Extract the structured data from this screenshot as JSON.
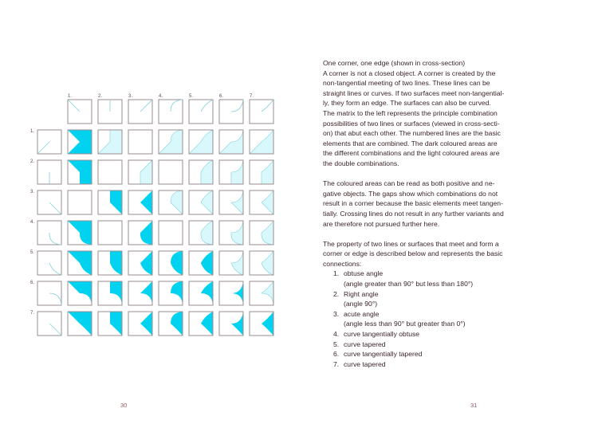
{
  "matrix": {
    "column_labels": [
      "1.",
      "2.",
      "3.",
      "4.",
      "5.",
      "6.",
      "7."
    ],
    "row_labels": [
      "1.",
      "2.",
      "3.",
      "4.",
      "5.",
      "6.",
      "7."
    ],
    "cells": [
      [
        "dark",
        "light",
        "empty",
        "light",
        "light",
        "light",
        "light"
      ],
      [
        "dark",
        "empty",
        "light",
        "empty",
        "light",
        "light",
        "light"
      ],
      [
        "empty",
        "dark",
        "dark",
        "light",
        "light",
        "light",
        "light"
      ],
      [
        "dark",
        "empty",
        "dark",
        "empty",
        "light",
        "light",
        "light"
      ],
      [
        "dark",
        "dark",
        "dark",
        "dark",
        "dark",
        "light",
        "light"
      ],
      [
        "dark",
        "dark",
        "dark",
        "dark",
        "dark",
        "dark",
        "light"
      ],
      [
        "dark",
        "dark",
        "dark",
        "dark",
        "dark",
        "dark",
        "dark"
      ]
    ],
    "colors": {
      "dark": "#00d2ef",
      "light": "#d9f8fc",
      "line": "#7fd0d8",
      "border": "#9a8c92"
    }
  },
  "text": {
    "heading": "One corner, one edge (shown in cross-section)",
    "para1": [
      "A corner is not a closed object. A corner is created by the",
      "non-tangential meeting of two lines. These lines can be",
      "straight lines or curves. If two surfaces meet non-tangential-",
      "ly, they form an edge. The surfaces can also be curved.",
      "The matrix to the left represents the principle combination",
      "possibilities of two lines or surfaces (viewed in cross-secti-",
      "on) that abut each other. The numbered lines are the basic",
      "elements that are combined. The dark coloured areas are",
      "the different combinations and the light coloured areas are",
      "the double combinations."
    ],
    "para2": [
      "The coloured areas can be read as both positive and ne-",
      "gative objects. The gaps show which combinations do not",
      "result in a corner because the basic elements meet tangen-",
      "tially. Crossing lines do not result in any further variants and",
      "are therefore not pursued further here."
    ],
    "para3": [
      "The property of two lines or surfaces that meet and form a",
      "corner or edge is described below and represents the basic",
      "connections:"
    ],
    "list": [
      {
        "n": "1.",
        "label": "obtuse angle",
        "note": "(angle greater than 90° but less than 180°)"
      },
      {
        "n": "2.",
        "label": "Right angle",
        "note": "(angle 90°)"
      },
      {
        "n": "3.",
        "label": "acute angle",
        "note": "(angle less than 90° but greater than 0°)"
      },
      {
        "n": "4.",
        "label": "curve tangentially obtuse"
      },
      {
        "n": "5.",
        "label": "curve tapered"
      },
      {
        "n": "6.",
        "label": "curve tangentially tapered"
      },
      {
        "n": "7.",
        "label": "curve tapered"
      }
    ]
  },
  "page_numbers": {
    "left": "30",
    "right": "31"
  }
}
